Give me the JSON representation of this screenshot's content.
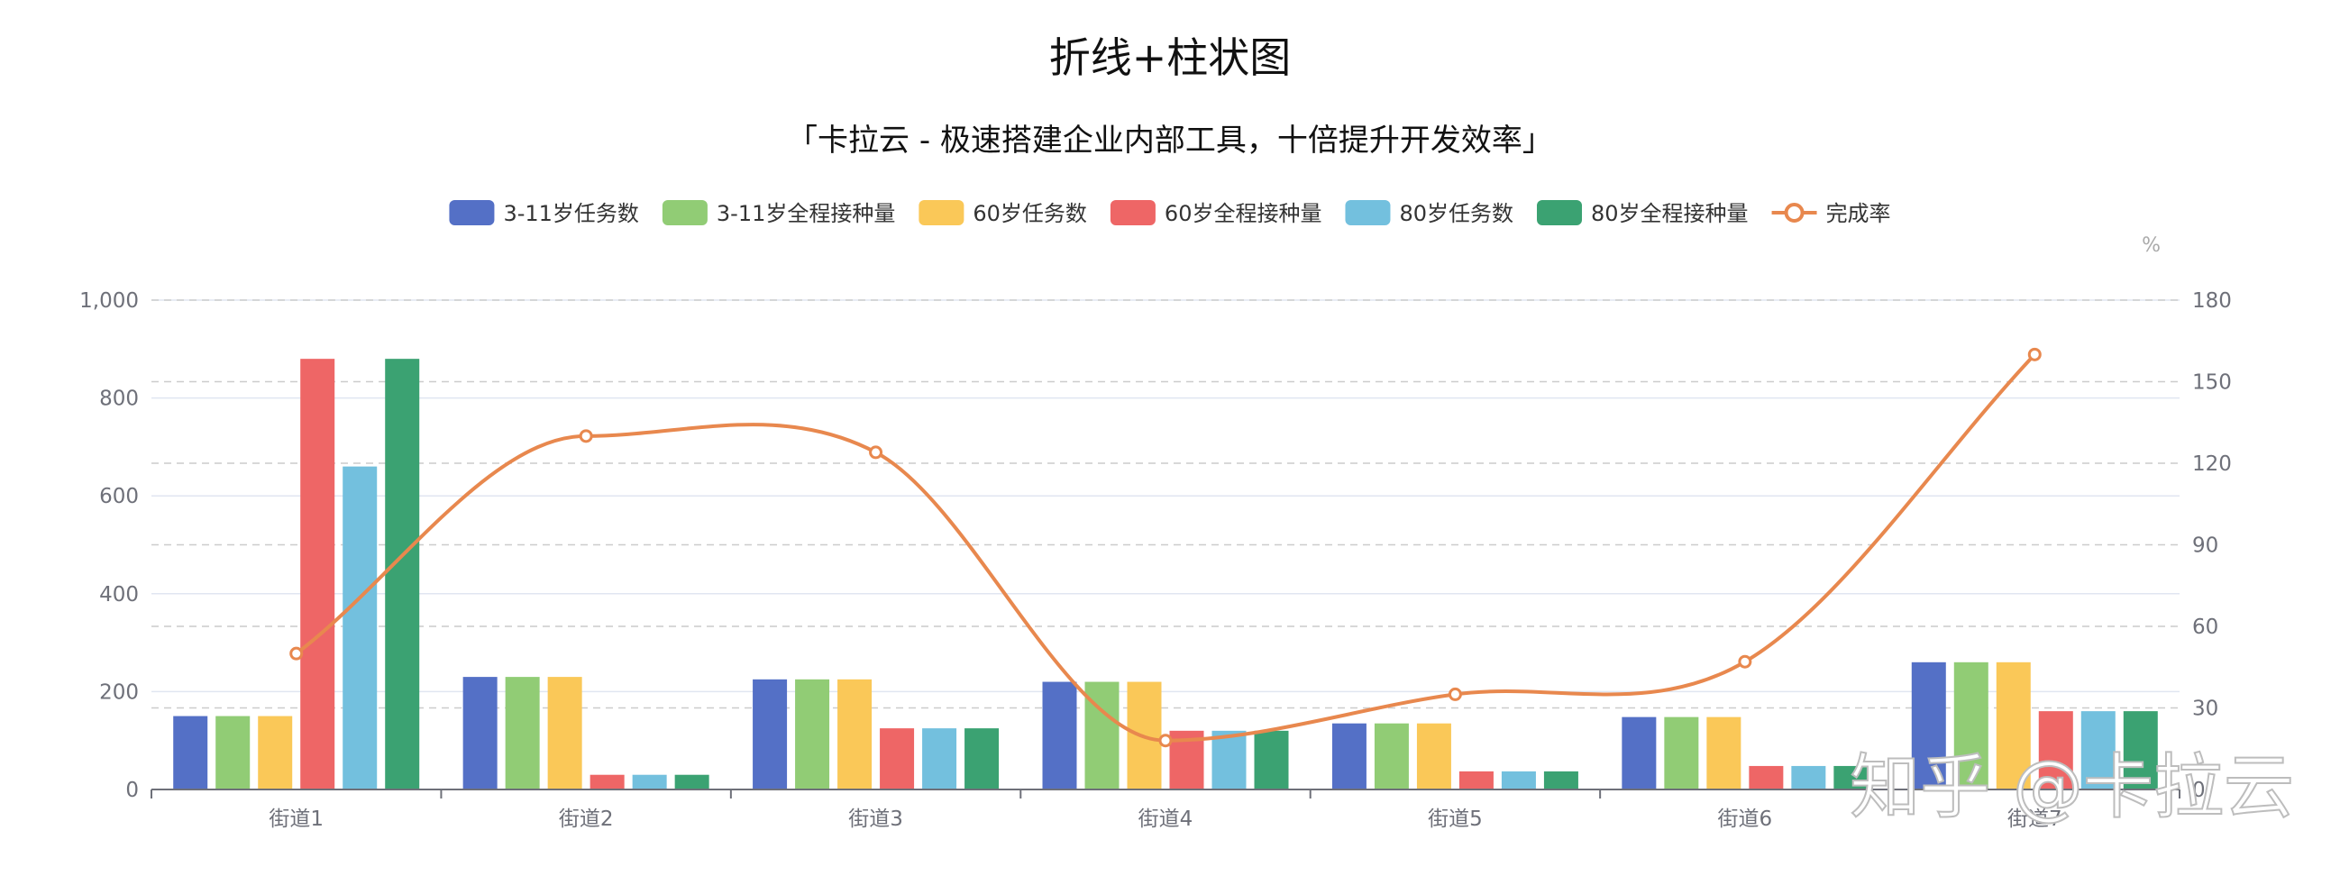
{
  "chart_data": {
    "type": "bar",
    "title": "折线+柱状图",
    "subtitle": "「卡拉云 - 极速搭建企业内部工具，十倍提升开发效率」",
    "categories": [
      "街道1",
      "街道2",
      "街道3",
      "街道4",
      "街道5",
      "街道6",
      "街道7"
    ],
    "series": [
      {
        "name": "3-11岁任务数",
        "type": "bar",
        "color": "#5470c6",
        "values": [
          150,
          230,
          225,
          220,
          135,
          148,
          260
        ]
      },
      {
        "name": "3-11岁全程接种量",
        "type": "bar",
        "color": "#91cc75",
        "values": [
          150,
          230,
          225,
          220,
          135,
          148,
          260
        ]
      },
      {
        "name": "60岁任务数",
        "type": "bar",
        "color": "#fac858",
        "values": [
          150,
          230,
          225,
          220,
          135,
          148,
          260
        ]
      },
      {
        "name": "60岁全程接种量",
        "type": "bar",
        "color": "#ee6666",
        "values": [
          880,
          30,
          125,
          120,
          37,
          48,
          160
        ]
      },
      {
        "name": "80岁任务数",
        "type": "bar",
        "color": "#73c0de",
        "values": [
          660,
          30,
          125,
          120,
          37,
          48,
          160
        ]
      },
      {
        "name": "80岁全程接种量",
        "type": "bar",
        "color": "#3ba272",
        "values": [
          880,
          30,
          125,
          120,
          37,
          48,
          160
        ]
      },
      {
        "name": "完成率",
        "type": "line",
        "color": "#e8884e",
        "axis": "right",
        "smooth": true,
        "values": [
          50,
          130,
          124,
          18,
          35,
          47,
          160
        ]
      }
    ],
    "y_left": {
      "min": 0,
      "max": 1000,
      "ticks": [
        "0",
        "200",
        "400",
        "600",
        "800",
        "1,000"
      ]
    },
    "y_right": {
      "min": 0,
      "max": 180,
      "ticks": [
        "0",
        "30",
        "60",
        "90",
        "120",
        "150",
        "180"
      ],
      "unit": "%"
    },
    "legend_position": "top-center",
    "grid": true
  },
  "watermark": "知乎 @卡拉云"
}
